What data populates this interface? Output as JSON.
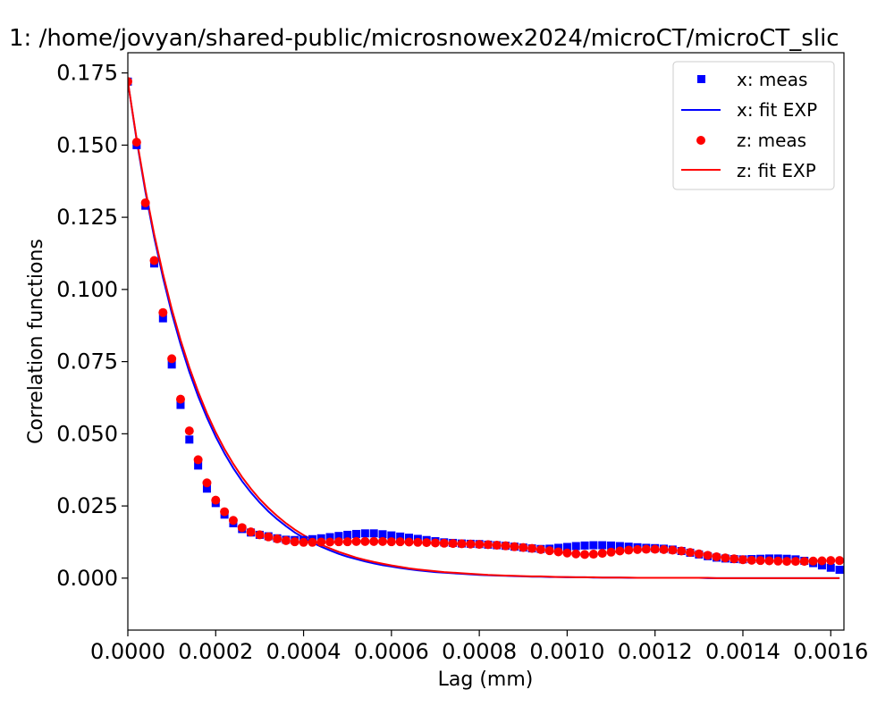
{
  "chart_data": {
    "type": "scatter",
    "title": "1: /home/jovyan/shared-public/microsnowex2024/microCT/microCT_slic",
    "xlabel": "Lag (mm)",
    "ylabel": "Correlation functions",
    "xlim": [
      0,
      0.00163
    ],
    "ylim": [
      -0.018,
      0.182
    ],
    "grid": false,
    "legend_position": "top-right",
    "xticks": [
      "0.0000",
      "0.0002",
      "0.0004",
      "0.0006",
      "0.0008",
      "0.0010",
      "0.0012",
      "0.0014",
      "0.0016"
    ],
    "yticks": [
      "0.000",
      "0.025",
      "0.050",
      "0.075",
      "0.100",
      "0.125",
      "0.150",
      "0.175"
    ],
    "xtick_values": [
      0,
      0.0002,
      0.0004,
      0.0006,
      0.0008,
      0.001,
      0.0012,
      0.0014,
      0.0016
    ],
    "ytick_values": [
      0,
      0.025,
      0.05,
      0.075,
      0.1,
      0.125,
      0.15,
      0.175
    ],
    "x": [
      0,
      2e-05,
      4e-05,
      6e-05,
      8e-05,
      0.0001,
      0.00012,
      0.00014,
      0.00016,
      0.00018,
      0.0002,
      0.00022,
      0.00024,
      0.00026,
      0.00028,
      0.0003,
      0.00032,
      0.00034,
      0.00036,
      0.00038,
      0.0004,
      0.00042,
      0.00044,
      0.00046,
      0.00048,
      0.0005,
      0.00052,
      0.00054,
      0.00056,
      0.00058,
      0.0006,
      0.00062,
      0.00064,
      0.00066,
      0.00068,
      0.0007,
      0.00072,
      0.00074,
      0.00076,
      0.00078,
      0.0008,
      0.00082,
      0.00084,
      0.00086,
      0.00088,
      0.0009,
      0.00092,
      0.00094,
      0.00096,
      0.00098,
      0.001,
      0.00102,
      0.00104,
      0.00106,
      0.00108,
      0.0011,
      0.00112,
      0.00114,
      0.00116,
      0.00118,
      0.0012,
      0.00122,
      0.00124,
      0.00126,
      0.00128,
      0.0013,
      0.00132,
      0.00134,
      0.00136,
      0.00138,
      0.0014,
      0.00142,
      0.00144,
      0.00146,
      0.00148,
      0.0015,
      0.00152,
      0.00154,
      0.00156,
      0.00158,
      0.0016,
      0.00162
    ],
    "series": [
      {
        "name": "x: meas",
        "style": "square-markers",
        "color": "#0000ff",
        "values": [
          0.172,
          0.15,
          0.129,
          0.109,
          0.09,
          0.074,
          0.06,
          0.048,
          0.039,
          0.031,
          0.026,
          0.022,
          0.019,
          0.017,
          0.0158,
          0.015,
          0.0145,
          0.0138,
          0.0133,
          0.0132,
          0.0132,
          0.0135,
          0.0138,
          0.0142,
          0.0146,
          0.015,
          0.0153,
          0.0155,
          0.0155,
          0.0152,
          0.0148,
          0.0144,
          0.014,
          0.0136,
          0.0132,
          0.0128,
          0.0124,
          0.0122,
          0.012,
          0.0119,
          0.0118,
          0.0116,
          0.0114,
          0.0112,
          0.0109,
          0.0106,
          0.0103,
          0.0101,
          0.0102,
          0.0105,
          0.0108,
          0.0111,
          0.0113,
          0.0114,
          0.0114,
          0.0113,
          0.0111,
          0.0109,
          0.0107,
          0.0105,
          0.0104,
          0.0102,
          0.0099,
          0.0094,
          0.0088,
          0.0082,
          0.0076,
          0.0071,
          0.0068,
          0.0066,
          0.0065,
          0.0066,
          0.0067,
          0.0068,
          0.0068,
          0.0067,
          0.0065,
          0.006,
          0.0052,
          0.0044,
          0.0036,
          0.0029
        ]
      },
      {
        "name": "x: fit EXP",
        "style": "line",
        "color": "#0000ff",
        "values": [
          0.172,
          0.1517,
          0.1338,
          0.118,
          0.1041,
          0.0918,
          0.081,
          0.0714,
          0.063,
          0.0556,
          0.049,
          0.0432,
          0.0381,
          0.0336,
          0.0297,
          0.0262,
          0.0231,
          0.0204,
          0.018,
          0.0158,
          0.014,
          0.0123,
          0.0109,
          0.0096,
          0.0084,
          0.0074,
          0.0066,
          0.0058,
          0.0051,
          0.0045,
          0.004,
          0.0035,
          0.0031,
          0.0027,
          0.0024,
          0.0021,
          0.0019,
          0.0017,
          0.0015,
          0.0013,
          0.0011,
          0.001,
          0.0009,
          0.0008,
          0.0007,
          0.0006,
          0.0005,
          0.0005,
          0.0004,
          0.0004,
          0.0003,
          0.0003,
          0.0003,
          0.0002,
          0.0002,
          0.0002,
          0.0002,
          0.0001,
          0.0001,
          0.0001,
          0.0001,
          0.0001,
          0.0001,
          0.0001,
          0.0001,
          0.0001,
          0.0,
          0.0,
          0.0,
          0.0,
          0.0,
          0.0,
          0.0,
          0.0,
          0.0,
          0.0,
          0.0,
          0.0,
          0.0,
          0.0,
          0.0,
          0.0
        ]
      },
      {
        "name": "z: meas",
        "style": "circle-markers",
        "color": "#ff0000",
        "values": [
          0.172,
          0.151,
          0.13,
          0.11,
          0.092,
          0.076,
          0.062,
          0.051,
          0.041,
          0.033,
          0.027,
          0.023,
          0.02,
          0.0175,
          0.016,
          0.015,
          0.0143,
          0.0136,
          0.013,
          0.0126,
          0.0124,
          0.0124,
          0.0125,
          0.0125,
          0.0126,
          0.0126,
          0.0127,
          0.0127,
          0.0127,
          0.0127,
          0.0126,
          0.0126,
          0.0125,
          0.0124,
          0.0123,
          0.0122,
          0.0121,
          0.012,
          0.0119,
          0.0118,
          0.0117,
          0.0116,
          0.0114,
          0.0112,
          0.0109,
          0.0106,
          0.0103,
          0.0099,
          0.0095,
          0.0091,
          0.0087,
          0.0084,
          0.0082,
          0.0083,
          0.0086,
          0.009,
          0.0094,
          0.0097,
          0.0099,
          0.01,
          0.01,
          0.0099,
          0.0097,
          0.0094,
          0.0089,
          0.0084,
          0.0079,
          0.0074,
          0.007,
          0.0067,
          0.0064,
          0.0062,
          0.0061,
          0.006,
          0.0059,
          0.0058,
          0.0058,
          0.0058,
          0.0059,
          0.006,
          0.0061,
          0.0061
        ]
      },
      {
        "name": "z: fit EXP",
        "style": "line",
        "color": "#ff0000",
        "values": [
          0.172,
          0.1522,
          0.1346,
          0.1191,
          0.1054,
          0.0932,
          0.0825,
          0.073,
          0.0646,
          0.0571,
          0.0505,
          0.0447,
          0.0396,
          0.035,
          0.031,
          0.0274,
          0.0243,
          0.0215,
          0.019,
          0.0168,
          0.0149,
          0.0132,
          0.0116,
          0.0103,
          0.0091,
          0.0081,
          0.0071,
          0.0063,
          0.0056,
          0.005,
          0.0044,
          0.0039,
          0.0034,
          0.003,
          0.0027,
          0.0024,
          0.0021,
          0.0019,
          0.0017,
          0.0015,
          0.0013,
          0.0011,
          0.001,
          0.0009,
          0.0008,
          0.0007,
          0.0006,
          0.0006,
          0.0005,
          0.0004,
          0.0004,
          0.0003,
          0.0003,
          0.0003,
          0.0002,
          0.0002,
          0.0002,
          0.0002,
          0.0001,
          0.0001,
          0.0001,
          0.0001,
          0.0001,
          0.0001,
          0.0001,
          0.0001,
          0.0001,
          0.0,
          0.0,
          0.0,
          0.0,
          0.0,
          0.0,
          0.0,
          0.0,
          0.0,
          0.0,
          0.0,
          0.0,
          0.0,
          0.0,
          0.0
        ]
      }
    ]
  }
}
